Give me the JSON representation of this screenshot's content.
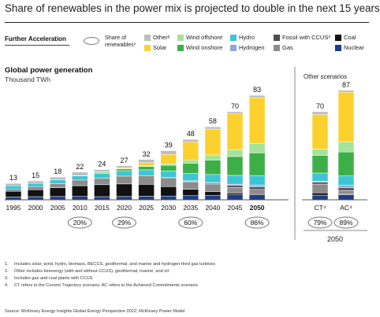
{
  "title": "Share of renewables in the power mix is projected to double in the next 15 years",
  "scenario_label": "Further Acceleration",
  "legend": {
    "oval_label_line1": "Share of",
    "oval_label_line2": "renewables¹",
    "items": [
      {
        "key": "other",
        "label": "Other²",
        "color": "#bdbdbd"
      },
      {
        "key": "solar",
        "label": "Solar",
        "color": "#fdd12d"
      },
      {
        "key": "wind_offshore",
        "label": "Wind offshore",
        "color": "#a5e39a"
      },
      {
        "key": "wind_onshore",
        "label": "Wind onshore",
        "color": "#3cb046"
      },
      {
        "key": "hydro",
        "label": "Hydro",
        "color": "#3cc6d4"
      },
      {
        "key": "hydrogen",
        "label": "Hydrogen",
        "color": "#8ea9d6"
      },
      {
        "key": "fossil_ccus",
        "label": "Fossil with CCUS³",
        "color": "#4d4d4d"
      },
      {
        "key": "gas",
        "label": "Gas",
        "color": "#8c8c8c"
      },
      {
        "key": "coal",
        "label": "Coal",
        "color": "#111111"
      },
      {
        "key": "nuclear",
        "label": "Nuclear",
        "color": "#1c3d8a"
      }
    ]
  },
  "left_panel": {
    "title": "Global power generation",
    "subtitle": "Thousand TWh"
  },
  "right_panel": {
    "title": "Other scenarios",
    "footer": "2050"
  },
  "chart_data": {
    "type": "bar",
    "stacked": true,
    "ylabel": "Thousand TWh",
    "stack_order_bottom_to_top": [
      "nuclear",
      "coal",
      "gas",
      "fossil_ccus",
      "hydrogen",
      "hydro",
      "wind_onshore",
      "wind_offshore",
      "solar",
      "other"
    ],
    "categories": [
      "1995",
      "2000",
      "2005",
      "2010",
      "2015",
      "2020",
      "2025",
      "2030",
      "2035",
      "2040",
      "2045",
      "2050",
      "CT⁴",
      "AC⁴"
    ],
    "highlight_category": "2050",
    "totals": [
      13,
      15,
      18,
      22,
      24,
      27,
      32,
      39,
      48,
      58,
      70,
      83,
      70,
      87
    ],
    "renewable_share": [
      "",
      "",
      "",
      "20%",
      "",
      "29%",
      "",
      "",
      "60%",
      "",
      "",
      "86%",
      "79%",
      "89%"
    ],
    "series": [
      {
        "key": "nuclear",
        "values": [
          2.3,
          2.5,
          2.6,
          2.7,
          2.5,
          2.6,
          2.8,
          3,
          3.3,
          3.6,
          3.9,
          4,
          3.7,
          4
        ]
      },
      {
        "key": "coal",
        "values": [
          4.5,
          5.5,
          7,
          8.5,
          9.5,
          10,
          9.5,
          7.5,
          5,
          3,
          1.5,
          0.8,
          1.8,
          0.5
        ]
      },
      {
        "key": "gas",
        "values": [
          1.8,
          2.5,
          3.3,
          4.5,
          5.2,
          6.2,
          6.8,
          7,
          6,
          5.5,
          4.5,
          3.5,
          7,
          3
        ]
      },
      {
        "key": "fossil_ccus",
        "values": [
          0,
          0,
          0,
          0,
          0,
          0,
          0,
          0.2,
          0.5,
          1,
          1.5,
          2,
          1.5,
          2
        ]
      },
      {
        "key": "hydrogen",
        "values": [
          0,
          0,
          0,
          0,
          0,
          0,
          0,
          0,
          0.3,
          0.6,
          1,
          1.5,
          0.8,
          2
        ]
      },
      {
        "key": "hydro",
        "values": [
          2.5,
          2.6,
          2.9,
          3.3,
          3.8,
          4.3,
          4.7,
          5.2,
          5.8,
          6.4,
          7,
          7.5,
          6.5,
          7.5
        ]
      },
      {
        "key": "wind_onshore",
        "values": [
          0,
          0,
          0.1,
          0.3,
          0.8,
          1.4,
          2.6,
          4.5,
          8,
          11.5,
          15,
          18,
          14,
          19
        ]
      },
      {
        "key": "wind_offshore",
        "values": [
          0,
          0,
          0,
          0,
          0.1,
          0.2,
          0.5,
          1.2,
          2.5,
          4,
          5.5,
          7.5,
          5,
          8
        ]
      },
      {
        "key": "solar",
        "values": [
          0,
          0,
          0,
          0,
          0.3,
          0.8,
          2.6,
          7.5,
          14.4,
          20.6,
          28.4,
          36.4,
          27.5,
          39.5
        ]
      },
      {
        "key": "other",
        "values": [
          1.9,
          1.9,
          2.1,
          2.7,
          1.8,
          1.5,
          2.5,
          2.9,
          2.2,
          1.8,
          1.7,
          1.8,
          2.2,
          1.5
        ]
      }
    ]
  },
  "footnotes": [
    {
      "num": "1.",
      "text": "Includes solar, wind, hydro, biomass, BECCS, geothermal, and marine and hydrogen-fired gas turbines"
    },
    {
      "num": "2.",
      "text": "Other includes bioenergy (with and without CCUS), geothermal, marine, and oil"
    },
    {
      "num": "3.",
      "text": "Includes gas and coal plants with CCUS"
    },
    {
      "num": "4.",
      "text": "CT refers to the Current Trajectory scenario; AC refers to the Achieved Commitments scenario"
    }
  ],
  "source": "Source: McKinsey Energy Insights Global Energy Perspective 2022; McKinsey Power Model"
}
